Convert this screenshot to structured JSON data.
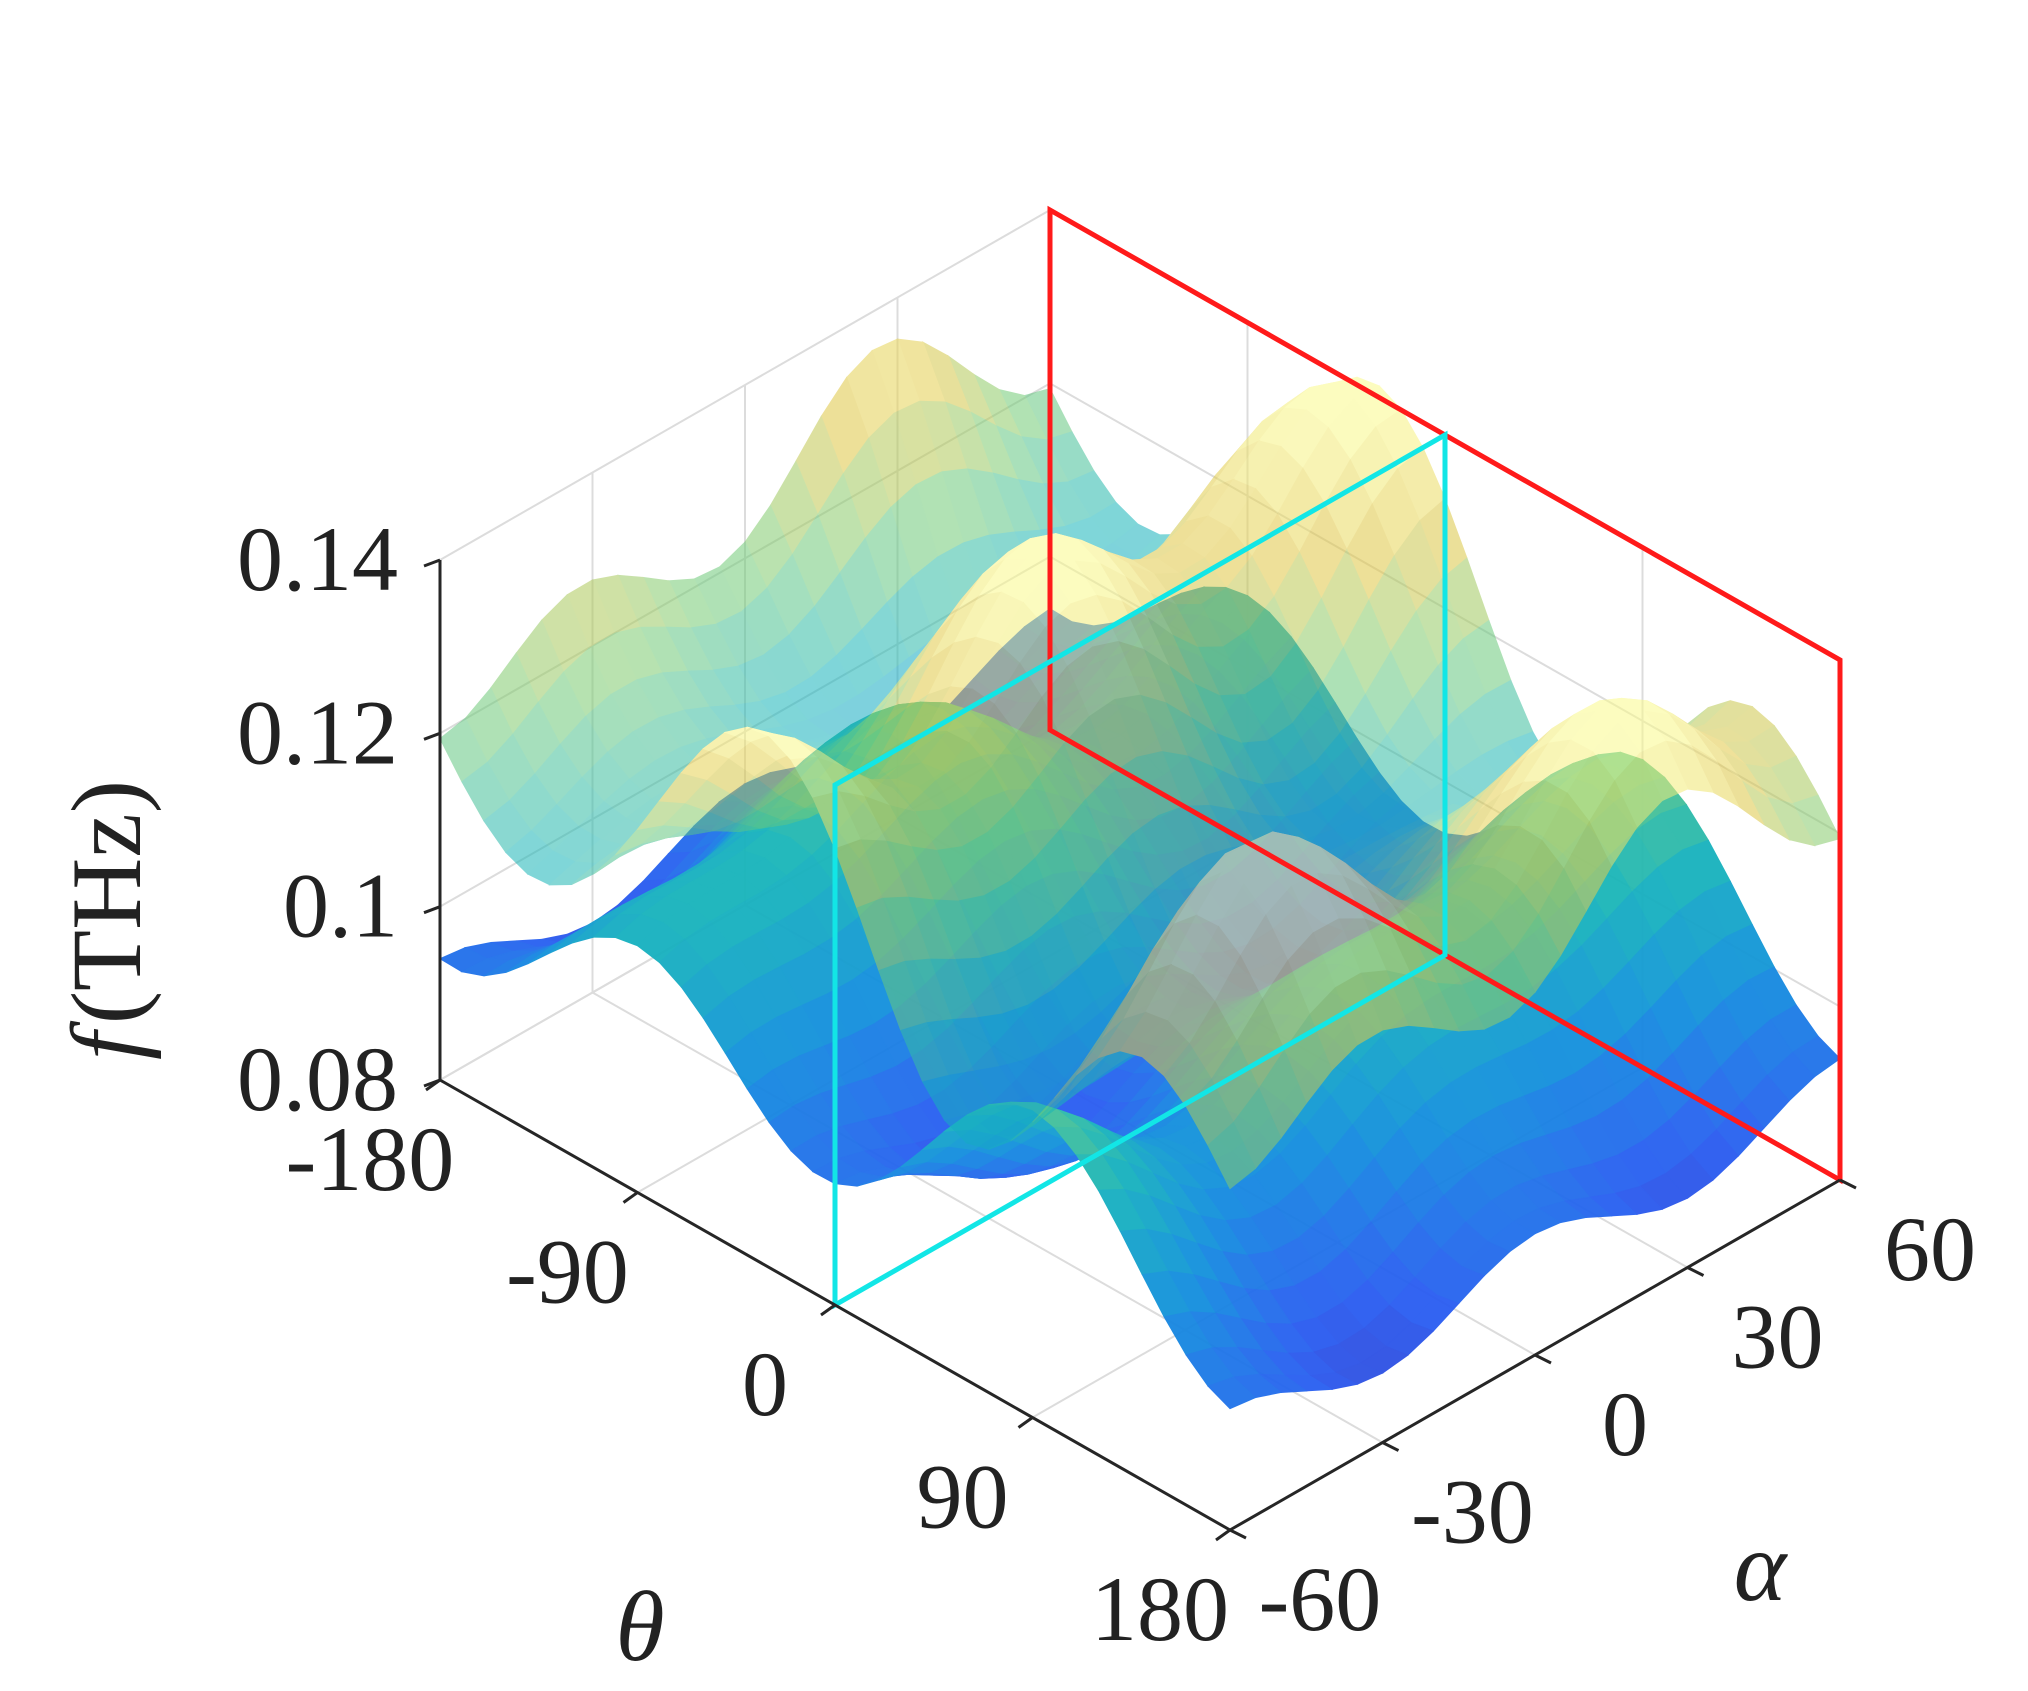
{
  "chart_data": {
    "type": "surface",
    "zlabel_var": "f",
    "zlabel_unit": "(THz)",
    "xlabel": "θ",
    "ylabel": "α",
    "xlim": [
      -180,
      180
    ],
    "ylim": [
      -60,
      60
    ],
    "zlim": [
      0.08,
      0.14
    ],
    "x_ticks": [
      "-180",
      "-90",
      "0",
      "90",
      "180"
    ],
    "x_tick_values": [
      -180,
      -90,
      0,
      90,
      180
    ],
    "y_ticks": [
      "-60",
      "-30",
      "0",
      "30",
      "60"
    ],
    "y_tick_values": [
      -60,
      -30,
      0,
      30,
      60
    ],
    "z_ticks": [
      "0.08",
      "0.1",
      "0.12",
      "0.14"
    ],
    "z_tick_values": [
      0.08,
      0.1,
      0.12,
      0.14
    ],
    "grid": true,
    "colormap": "parula",
    "series": [
      {
        "kind": "surface",
        "opacity": 0.95,
        "base": 0.1,
        "terms": [
          {
            "amp": -0.009,
            "fx": 2,
            "fy": 0,
            "px": 0,
            "py": 0
          },
          {
            "amp": 0.006,
            "fx": 1,
            "fy": 1,
            "px": 0.5,
            "py": 0.3
          },
          {
            "amp": 0.003,
            "fx": 0,
            "fy": 2,
            "px": 0,
            "py": 0
          }
        ]
      },
      {
        "kind": "surface",
        "opacity": 0.55,
        "base": 0.122,
        "terms": [
          {
            "amp": 0.013,
            "fx": 2,
            "fy": 0,
            "px": 0.4,
            "py": 0
          },
          {
            "amp": 0.007,
            "fx": 1,
            "fy": 2,
            "px": 0.2,
            "py": 0.1
          },
          {
            "amp": 0.004,
            "fx": 3,
            "fy": 1,
            "px": 0,
            "py": 0.6
          }
        ]
      }
    ],
    "planes": [
      {
        "name": "constant-alpha plane",
        "color": "#ff1a1a",
        "axis": "y",
        "value": 60,
        "zrange": [
          0.08,
          0.14
        ]
      },
      {
        "name": "constant-theta plane",
        "color": "#12e6e6",
        "axis": "x",
        "value": 0,
        "zrange": [
          0.08,
          0.14
        ]
      }
    ]
  }
}
